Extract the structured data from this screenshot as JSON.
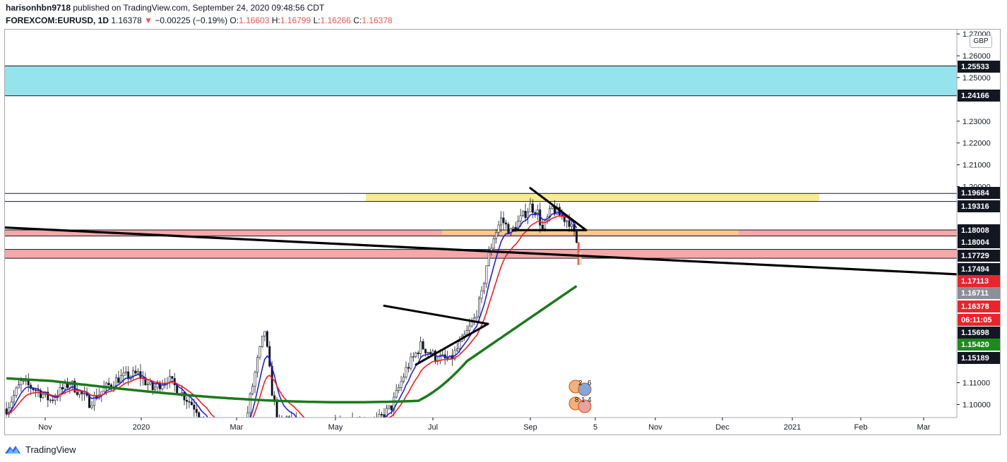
{
  "header": {
    "line1_user": "harisonhbn9718",
    "line1_rest": " published on TradingView.com, September 24, 2020 09:48:56 CDT",
    "symbol": "FOREXCOM:EURUSD, 1D",
    "price": "1.16378",
    "arrow": "▼",
    "change": "−0.00225 (−0.19%)",
    "o_label": "O:",
    "o_val": "1.16603",
    "h_label": "H:",
    "h_val": "1.16799",
    "l_label": "L:",
    "l_val": "1.16266",
    "c_label": "C:",
    "c_val": "1.16378"
  },
  "currency_button": "GBP",
  "footer": {
    "logo_text": "TradingView"
  },
  "colors": {
    "up": "#26a69a",
    "down": "#ef5350",
    "blue_ma": "#1e22e6",
    "red_ma": "#ff1a1a",
    "green_ma": "#1b7a1b",
    "cyan_zone": "#8fe1ec",
    "yellow_zone": "#f9eb86",
    "orange_zone": "#fbcf7e",
    "red_zone": "#f5a3a3"
  },
  "chart_data": {
    "type": "candlestick",
    "symbol": "FOREXCOM:EURUSD",
    "interval": "1D",
    "y_range": [
      1.094,
      1.272
    ],
    "y_ticks": [
      1.27,
      1.26,
      1.25,
      1.23,
      1.22,
      1.21,
      1.2,
      1.11,
      1.1
    ],
    "y_tick_labels": [
      "1.27000",
      "1.26000",
      "1.25000",
      "1.23000",
      "1.22000",
      "1.21000",
      "1.20000",
      "1.11000",
      "1.10000"
    ],
    "x_labels": [
      "Nov",
      "2020",
      "Mar",
      "May",
      "Jul",
      "Sep",
      "5",
      "Nov",
      "Dec",
      "2021",
      "Feb",
      "Mar"
    ],
    "price_labels": [
      {
        "value": 1.25533,
        "text": "1.25533",
        "bg": "#131722",
        "fg": "#ffffff"
      },
      {
        "value": 1.24166,
        "text": "1.24166",
        "bg": "#131722",
        "fg": "#ffffff"
      },
      {
        "value": 1.19684,
        "text": "1.19684",
        "bg": "#131722",
        "fg": "#ffffff"
      },
      {
        "value": 1.19316,
        "text": "1.19316",
        "bg": "#131722",
        "fg": "#ffffff"
      },
      {
        "value": 1.18008,
        "text": "1.18008",
        "bg": "#131722",
        "fg": "#ffffff"
      },
      {
        "value": 1.18004,
        "text": "1.18004",
        "bg": "#131722",
        "fg": "#ffffff"
      },
      {
        "value": 1.17729,
        "text": "1.17729",
        "bg": "#131722",
        "fg": "#ffffff"
      },
      {
        "value": 1.17494,
        "text": "1.17494",
        "bg": "#131722",
        "fg": "#ffffff"
      },
      {
        "value": 1.17113,
        "text": "1.17113",
        "bg": "#e8252b",
        "fg": "#ffffff"
      },
      {
        "value": 1.16711,
        "text": "1.16711",
        "bg": "#8c8f99",
        "fg": "#ffffff"
      },
      {
        "value": 1.16378,
        "text": "1.16378",
        "bg": "#e8252b",
        "fg": "#ffffff"
      },
      {
        "value": 1.16,
        "text": "06:11:05",
        "bg": "#e8252b",
        "fg": "#ffffff"
      },
      {
        "value": 1.15698,
        "text": "1.15698",
        "bg": "#131722",
        "fg": "#ffffff"
      },
      {
        "value": 1.1542,
        "text": "1.15420",
        "bg": "#1d8a1d",
        "fg": "#ffffff"
      },
      {
        "value": 1.15189,
        "text": "1.15189",
        "bg": "#131722",
        "fg": "#ffffff"
      }
    ],
    "zones": [
      {
        "name": "cyan-zone",
        "y1": 1.24166,
        "y2": 1.25533,
        "color": "#8fe1ec"
      },
      {
        "name": "yellow-zone",
        "y1": 1.19316,
        "y2": 1.19684,
        "color": "#f9eb86"
      },
      {
        "name": "red-zone-upper",
        "y1": 1.17729,
        "y2": 1.18008,
        "color": "#f5a3a3"
      },
      {
        "name": "orange-zone",
        "y1": 1.178,
        "y2": 1.18004,
        "color": "#fbcf7e"
      },
      {
        "name": "red-zone-lower",
        "y1": 1.16711,
        "y2": 1.17113,
        "color": "#f5a3a3"
      }
    ],
    "annotations": {
      "event_badges_top": [
        "2",
        "6"
      ],
      "event_badges_bottom": [
        "8",
        "1",
        "4"
      ]
    }
  }
}
